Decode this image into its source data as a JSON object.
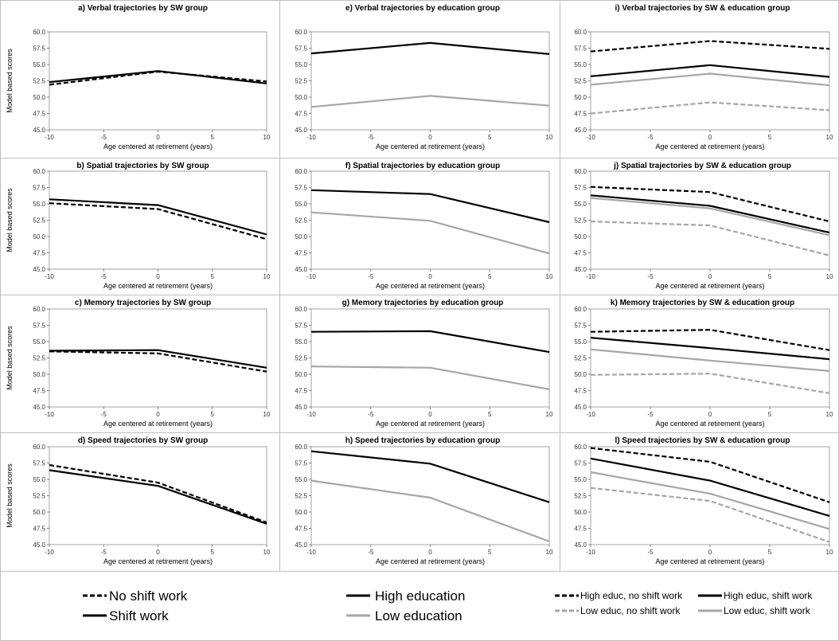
{
  "figure": {
    "ylabel": "Model based scores",
    "xlabel": "Age centered at retirement (years)"
  },
  "styles": {
    "no_shift": {
      "color": "#000000",
      "dash": "6,3"
    },
    "shift": {
      "color": "#000000",
      "dash": ""
    },
    "high_edu": {
      "color": "#000000",
      "dash": ""
    },
    "low_edu": {
      "color": "#a6a6a6",
      "dash": ""
    },
    "high_noshift": {
      "color": "#000000",
      "dash": "6,3"
    },
    "high_shift": {
      "color": "#000000",
      "dash": ""
    },
    "low_noshift": {
      "color": "#a6a6a6",
      "dash": "6,3"
    },
    "low_shift": {
      "color": "#a6a6a6",
      "dash": ""
    }
  },
  "legends": [
    {
      "entries": [
        {
          "style": "no_shift",
          "label": "No shift work"
        },
        {
          "style": "shift",
          "label": "Shift work"
        }
      ]
    },
    {
      "entries": [
        {
          "style": "high_edu",
          "label": "High education"
        },
        {
          "style": "low_edu",
          "label": "Low education"
        }
      ]
    },
    {
      "entries": [
        {
          "style": "high_noshift",
          "label": "High educ, no shift work"
        },
        {
          "style": "high_shift",
          "label": "High educ, shift work"
        },
        {
          "style": "low_noshift",
          "label": "Low educ, no shift work"
        },
        {
          "style": "low_shift",
          "label": "Low educ, shift work"
        }
      ]
    }
  ],
  "chart_data": [
    {
      "type": "line",
      "title": "a) Verbal trajectories by SW group",
      "x": [
        -10,
        0,
        10
      ],
      "xticks": [
        "-10",
        "-5",
        "0",
        "5",
        "10"
      ],
      "yticks": [
        "45.0",
        "47.5",
        "50.0",
        "52.5",
        "55.0",
        "57.5",
        "60.0"
      ],
      "ylim": [
        45,
        60
      ],
      "series": [
        {
          "name": "No shift work",
          "style": "no_shift",
          "values": [
            51.9,
            53.9,
            52.4
          ]
        },
        {
          "name": "Shift work",
          "style": "shift",
          "values": [
            52.3,
            54.0,
            52.1
          ]
        }
      ]
    },
    {
      "type": "line",
      "title": "e) Verbal trajectories by education group",
      "x": [
        -10,
        0,
        10
      ],
      "xticks": [
        "-10",
        "-5",
        "0",
        "5",
        "10"
      ],
      "yticks": [
        "45.0",
        "47.5",
        "50.0",
        "52.5",
        "55.0",
        "57.5",
        "60.0"
      ],
      "ylim": [
        45,
        60
      ],
      "series": [
        {
          "name": "High education",
          "style": "high_edu",
          "values": [
            56.7,
            58.3,
            56.6
          ]
        },
        {
          "name": "Low education",
          "style": "low_edu",
          "values": [
            48.5,
            50.2,
            48.7
          ]
        }
      ]
    },
    {
      "type": "line",
      "title": "i) Verbal trajectories by SW & education group",
      "x": [
        -10,
        0,
        10
      ],
      "xticks": [
        "-10",
        "-5",
        "0",
        "5",
        "10"
      ],
      "yticks": [
        "45.0",
        "47.5",
        "50.0",
        "52.5",
        "55.0",
        "57.5",
        "60.0"
      ],
      "ylim": [
        45,
        60
      ],
      "series": [
        {
          "name": "High educ, no shift work",
          "style": "high_noshift",
          "values": [
            57.0,
            58.6,
            57.4
          ]
        },
        {
          "name": "High educ, shift work",
          "style": "high_shift",
          "values": [
            53.2,
            54.9,
            53.1
          ]
        },
        {
          "name": "Low educ, shift work",
          "style": "low_shift",
          "values": [
            51.9,
            53.6,
            51.8
          ]
        },
        {
          "name": "Low educ, no shift work",
          "style": "low_noshift",
          "values": [
            47.5,
            49.2,
            48.0
          ]
        }
      ]
    },
    {
      "type": "line",
      "title": "b) Spatial trajectories by SW group",
      "x": [
        -10,
        0,
        10
      ],
      "xticks": [
        "-10",
        "-5",
        "0",
        "5",
        "10"
      ],
      "yticks": [
        "45.0",
        "47.5",
        "50.0",
        "52.5",
        "55.0",
        "57.5",
        "60.0"
      ],
      "ylim": [
        45,
        60
      ],
      "series": [
        {
          "name": "No shift work",
          "style": "no_shift",
          "values": [
            55.1,
            54.2,
            49.6
          ]
        },
        {
          "name": "Shift work",
          "style": "shift",
          "values": [
            55.7,
            54.8,
            50.3
          ]
        }
      ]
    },
    {
      "type": "line",
      "title": "f) Spatial trajectories by education group",
      "x": [
        -10,
        0,
        10
      ],
      "xticks": [
        "-10",
        "-5",
        "0",
        "5",
        "10"
      ],
      "yticks": [
        "45.0",
        "47.5",
        "50.0",
        "52.5",
        "55.0",
        "57.5",
        "60.0"
      ],
      "ylim": [
        45,
        60
      ],
      "series": [
        {
          "name": "High education",
          "style": "high_edu",
          "values": [
            57.1,
            56.5,
            52.2
          ]
        },
        {
          "name": "Low education",
          "style": "low_edu",
          "values": [
            53.7,
            52.4,
            47.4
          ]
        }
      ]
    },
    {
      "type": "line",
      "title": "j) Spatial trajectories by SW & education group",
      "x": [
        -10,
        0,
        10
      ],
      "xticks": [
        "-10",
        "-5",
        "0",
        "5",
        "10"
      ],
      "yticks": [
        "45.0",
        "47.5",
        "50.0",
        "52.5",
        "55.0",
        "57.5",
        "60.0"
      ],
      "ylim": [
        45,
        60
      ],
      "series": [
        {
          "name": "High educ, no shift work",
          "style": "high_noshift",
          "values": [
            57.6,
            56.8,
            52.3
          ]
        },
        {
          "name": "High educ, shift work",
          "style": "high_shift",
          "values": [
            56.3,
            54.7,
            50.6
          ]
        },
        {
          "name": "Low educ, shift work",
          "style": "low_shift",
          "values": [
            55.9,
            54.3,
            50.2
          ]
        },
        {
          "name": "Low educ, no shift work",
          "style": "low_noshift",
          "values": [
            52.3,
            51.7,
            47.1
          ]
        }
      ]
    },
    {
      "type": "line",
      "title": "c) Memory trajectories by SW group",
      "x": [
        -10,
        0,
        10
      ],
      "xticks": [
        "-10",
        "-5",
        "0",
        "5",
        "10"
      ],
      "yticks": [
        "45.0",
        "47.5",
        "50.0",
        "52.5",
        "55.0",
        "57.5",
        "60.0"
      ],
      "ylim": [
        45,
        60
      ],
      "series": [
        {
          "name": "No shift work",
          "style": "no_shift",
          "values": [
            53.5,
            53.2,
            50.4
          ]
        },
        {
          "name": "Shift work",
          "style": "shift",
          "values": [
            53.6,
            53.7,
            51.0
          ]
        }
      ]
    },
    {
      "type": "line",
      "title": "g) Memory trajectories by education group",
      "x": [
        -10,
        0,
        10
      ],
      "xticks": [
        "-10",
        "-5",
        "0",
        "5",
        "10"
      ],
      "yticks": [
        "45.0",
        "47.5",
        "50.0",
        "52.5",
        "55.0",
        "57.5",
        "60.0"
      ],
      "ylim": [
        45,
        60
      ],
      "series": [
        {
          "name": "High education",
          "style": "high_edu",
          "values": [
            56.5,
            56.6,
            53.4
          ]
        },
        {
          "name": "Low education",
          "style": "low_edu",
          "values": [
            51.2,
            51.0,
            47.7
          ]
        }
      ]
    },
    {
      "type": "line",
      "title": "k) Memory trajectories by SW & education group",
      "x": [
        -10,
        0,
        10
      ],
      "xticks": [
        "-10",
        "-5",
        "0",
        "5",
        "10"
      ],
      "yticks": [
        "45.0",
        "47.5",
        "50.0",
        "52.5",
        "55.0",
        "57.5",
        "60.0"
      ],
      "ylim": [
        45,
        60
      ],
      "series": [
        {
          "name": "High educ, no shift work",
          "style": "high_noshift",
          "values": [
            56.5,
            56.8,
            53.7
          ]
        },
        {
          "name": "High educ, shift work",
          "style": "high_shift",
          "values": [
            55.6,
            54.0,
            52.3
          ]
        },
        {
          "name": "Low educ, shift work",
          "style": "low_shift",
          "values": [
            53.8,
            52.1,
            50.5
          ]
        },
        {
          "name": "Low educ, no shift work",
          "style": "low_noshift",
          "values": [
            49.9,
            50.1,
            47.1
          ]
        }
      ]
    },
    {
      "type": "line",
      "title": "d) Speed trajectories by SW group",
      "x": [
        -10,
        0,
        10
      ],
      "xticks": [
        "-10",
        "-5",
        "0",
        "5",
        "10"
      ],
      "yticks": [
        "45.0",
        "47.5",
        "50.0",
        "52.5",
        "55.0",
        "57.5",
        "60.0"
      ],
      "ylim": [
        45,
        60
      ],
      "series": [
        {
          "name": "No shift work",
          "style": "no_shift",
          "values": [
            57.2,
            54.5,
            48.4
          ]
        },
        {
          "name": "Shift work",
          "style": "shift",
          "values": [
            56.4,
            54.0,
            48.2
          ]
        }
      ]
    },
    {
      "type": "line",
      "title": "h) Speed trajectories by education group",
      "x": [
        -10,
        0,
        10
      ],
      "xticks": [
        "-10",
        "-5",
        "0",
        "5",
        "10"
      ],
      "yticks": [
        "45.0",
        "47.5",
        "50.0",
        "52.5",
        "55.0",
        "57.5",
        "60.0"
      ],
      "ylim": [
        45,
        60
      ],
      "series": [
        {
          "name": "High education",
          "style": "high_edu",
          "values": [
            59.3,
            57.4,
            51.5
          ]
        },
        {
          "name": "Low education",
          "style": "low_edu",
          "values": [
            54.8,
            52.2,
            45.5
          ]
        }
      ]
    },
    {
      "type": "line",
      "title": "l) Speed trajectories by SW & education group",
      "x": [
        -10,
        0,
        10
      ],
      "xticks": [
        "-10",
        "-5",
        "0",
        "5",
        "10"
      ],
      "yticks": [
        "45.0",
        "47.5",
        "50.0",
        "52.5",
        "55.0",
        "57.5",
        "60.0"
      ],
      "ylim": [
        45,
        60
      ],
      "series": [
        {
          "name": "High educ, no shift work",
          "style": "high_noshift",
          "values": [
            59.8,
            57.7,
            51.5
          ]
        },
        {
          "name": "High educ, shift work",
          "style": "high_shift",
          "values": [
            58.2,
            54.8,
            49.4
          ]
        },
        {
          "name": "Low educ, shift work",
          "style": "low_shift",
          "values": [
            56.1,
            52.8,
            47.4
          ]
        },
        {
          "name": "Low educ, no shift work",
          "style": "low_noshift",
          "values": [
            53.7,
            51.7,
            45.4
          ]
        }
      ]
    }
  ]
}
